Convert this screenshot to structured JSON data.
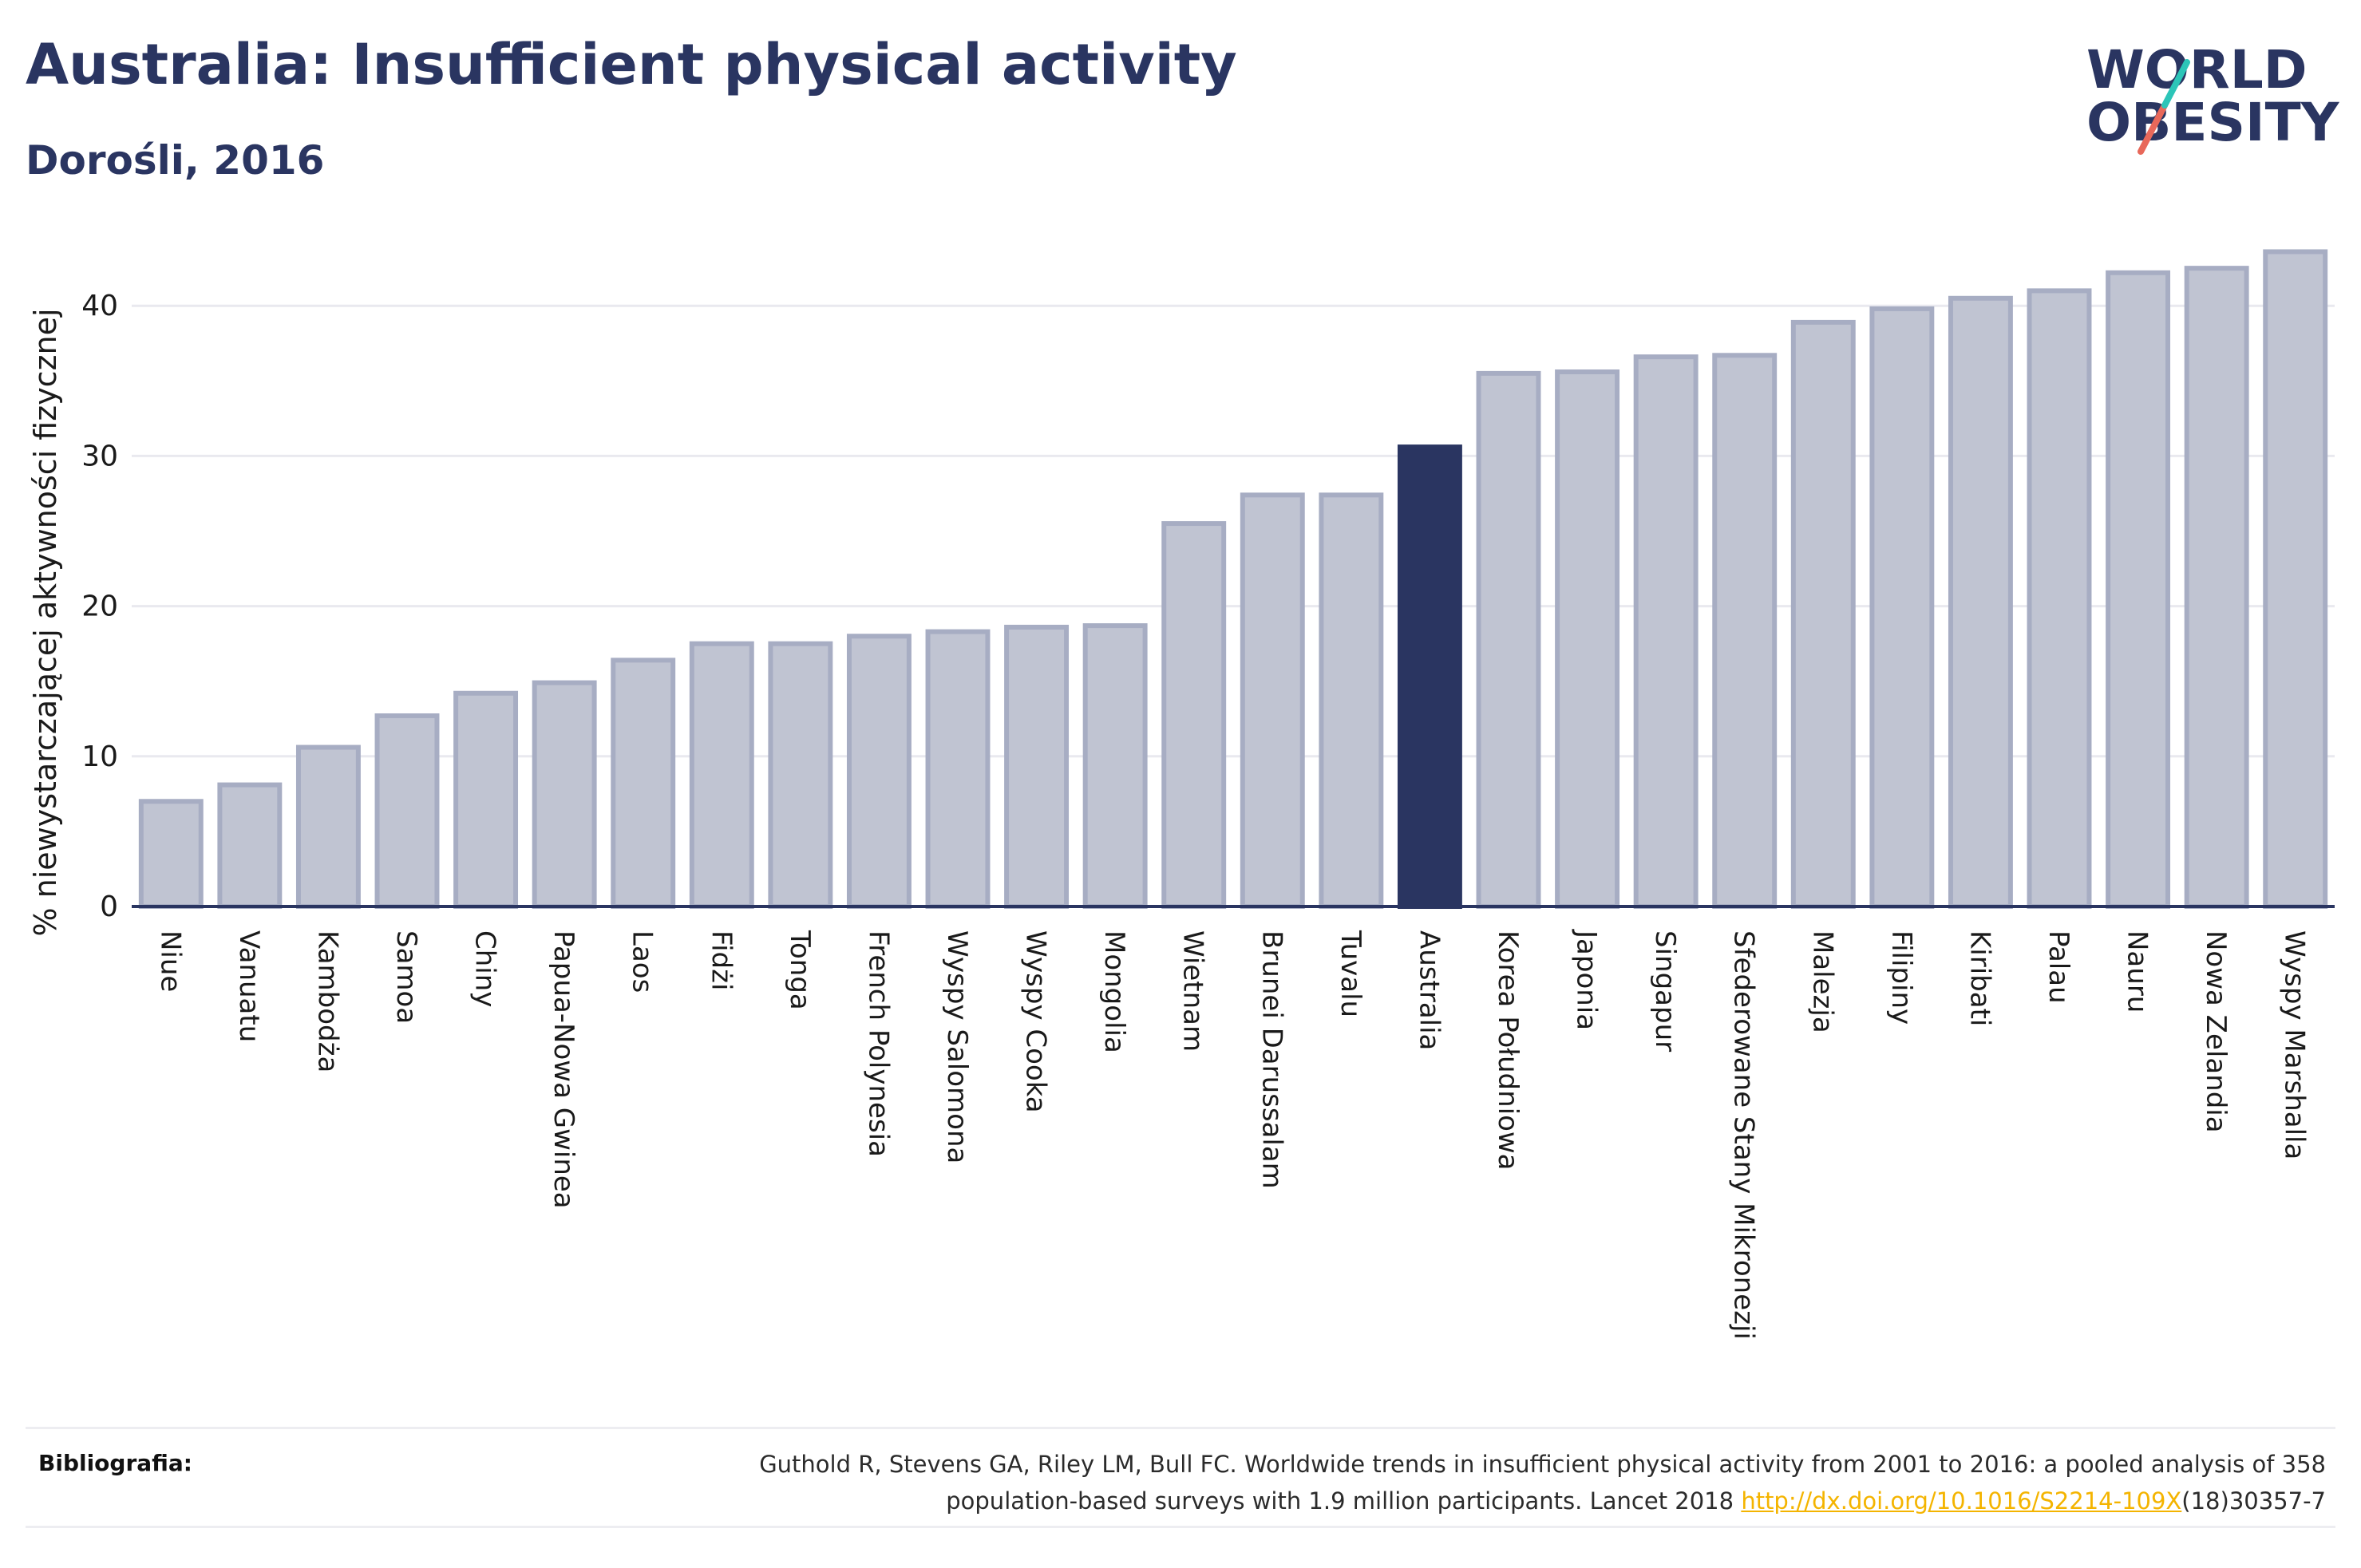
{
  "header": {
    "title": "Australia: Insufficient physical activity",
    "subtitle": "Dorośli, 2016"
  },
  "logo": {
    "line1": "WORLD",
    "line2": "OBESITY",
    "text_color": "#2a3561",
    "accent_teal": "#2cc5b8",
    "accent_coral": "#e8685a"
  },
  "chart_data": {
    "type": "bar",
    "title": "Australia: Insufficient physical activity",
    "subtitle": "Dorośli, 2016",
    "xlabel": "",
    "ylabel": "% niewystarczającej aktywności fizycznej",
    "ylim": [
      0,
      45
    ],
    "yticks": [
      0,
      10,
      20,
      30,
      40
    ],
    "grid": true,
    "highlight": "Australia",
    "colors": {
      "bar": "#c0c4d2",
      "bar_border": "#a7adc3",
      "highlight": "#2a3561",
      "grid": "#e9e9ef",
      "axis": "#2a3561"
    },
    "categories": [
      "Niue",
      "Vanuatu",
      "Kambodża",
      "Samoa",
      "Chiny",
      "Papua-Nowa Gwinea",
      "Laos",
      "Fidżi",
      "Tonga",
      "French Polynesia",
      "Wyspy Salomona",
      "Wyspy Cooka",
      "Mongolia",
      "Wietnam",
      "Brunei Darussalam",
      "Tuvalu",
      "Australia",
      "Korea Południowa",
      "Japonia",
      "Singapur",
      "Sfederowane Stany Mikronezji",
      "Malezja",
      "Filipiny",
      "Kiribati",
      "Palau",
      "Nauru",
      "Nowa Zelandia",
      "Wyspy Marshalla"
    ],
    "values": [
      7.0,
      8.1,
      10.6,
      12.7,
      14.2,
      14.9,
      16.4,
      17.5,
      17.5,
      18.0,
      18.3,
      18.6,
      18.7,
      25.5,
      27.4,
      27.4,
      30.6,
      35.5,
      35.6,
      36.6,
      36.7,
      38.9,
      39.8,
      40.5,
      41.0,
      42.2,
      42.5,
      43.6
    ]
  },
  "references": {
    "label": "Bibliografia:",
    "text_line1": "Guthold R, Stevens GA, Riley LM, Bull FC. Worldwide trends in insufficient physical activity from 2001 to 2016: a pooled analysis of 358",
    "text_line2_pre": "population-based surveys with 1.9 million participants. Lancet 2018 ",
    "link_text": "http://dx.doi.org/10.1016/S2214-109X",
    "text_line2_post": "(18)30357-7"
  }
}
